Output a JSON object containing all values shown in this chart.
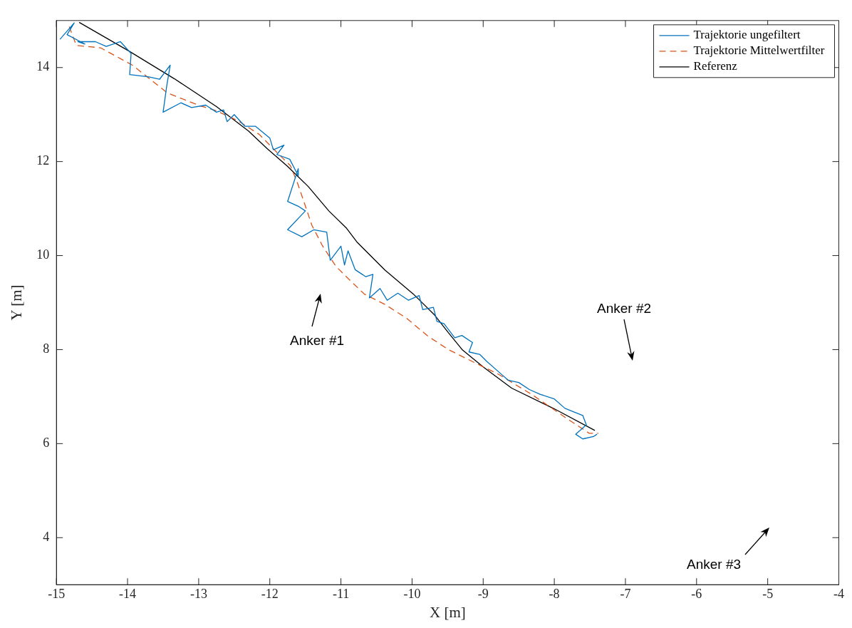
{
  "chart_data": {
    "type": "line",
    "xlabel": "X [m]",
    "ylabel": "Y [m]",
    "xlim": [
      -15,
      -4
    ],
    "ylim": [
      3,
      15
    ],
    "xticks": [
      -15,
      -14,
      -13,
      -12,
      -11,
      -10,
      -9,
      -8,
      -7,
      -6,
      -5,
      -4
    ],
    "yticks": [
      4,
      6,
      8,
      10,
      12,
      14
    ],
    "grid": false,
    "legend": "top right",
    "marker": "none",
    "series": [
      {
        "name": "Trajektorie ungefiltert",
        "color": "#0072bd",
        "line_style": "solid",
        "x": [
          -14.95,
          -14.75,
          -14.85,
          -14.6,
          -14.7,
          -14.45,
          -14.3,
          -14.1,
          -13.95,
          -13.97,
          -13.7,
          -13.55,
          -13.4,
          -13.45,
          -13.5,
          -13.25,
          -13.1,
          -12.9,
          -12.75,
          -12.65,
          -12.6,
          -12.5,
          -12.35,
          -12.2,
          -12.0,
          -11.95,
          -11.8,
          -11.9,
          -11.72,
          -11.6,
          -11.6,
          -11.75,
          -11.6,
          -11.5,
          -11.75,
          -11.55,
          -11.38,
          -11.2,
          -11.15,
          -11.0,
          -10.95,
          -10.9,
          -10.8,
          -10.65,
          -10.55,
          -10.6,
          -10.45,
          -10.35,
          -10.2,
          -10.05,
          -9.9,
          -9.85,
          -9.7,
          -9.65,
          -9.55,
          -9.4,
          -9.3,
          -9.15,
          -9.2,
          -9.05,
          -8.95,
          -8.8,
          -8.65,
          -8.5,
          -8.35,
          -8.2,
          -8.0,
          -7.85,
          -7.6,
          -7.55,
          -7.7,
          -7.6,
          -7.45,
          -7.4
        ],
        "values": [
          14.6,
          14.95,
          14.7,
          14.5,
          14.55,
          14.55,
          14.45,
          14.55,
          14.3,
          13.85,
          13.8,
          13.75,
          14.05,
          13.6,
          13.05,
          13.25,
          13.15,
          13.2,
          13.05,
          13.1,
          12.85,
          13.0,
          12.75,
          12.75,
          12.5,
          12.25,
          12.35,
          12.15,
          12.05,
          11.7,
          11.85,
          11.15,
          11.05,
          10.95,
          10.55,
          10.4,
          10.55,
          10.5,
          9.9,
          10.2,
          9.8,
          10.1,
          9.7,
          9.55,
          9.6,
          9.1,
          9.3,
          9.05,
          9.2,
          9.05,
          9.15,
          8.85,
          8.9,
          8.6,
          8.55,
          8.25,
          8.3,
          8.15,
          7.95,
          7.9,
          7.75,
          7.55,
          7.35,
          7.3,
          7.15,
          7.05,
          6.95,
          6.75,
          6.6,
          6.4,
          6.2,
          6.1,
          6.15,
          6.2
        ]
      },
      {
        "name": "Trajektorie Mittelwertfilter",
        "color": "#d95319",
        "line_style": "dashed",
        "x": [
          -14.82,
          -14.72,
          -14.38,
          -13.93,
          -13.44,
          -12.99,
          -12.75,
          -12.45,
          -12.15,
          -11.91,
          -11.71,
          -11.61,
          -11.51,
          -11.41,
          -11.26,
          -11.07,
          -10.87,
          -10.67,
          -10.38,
          -10.08,
          -9.78,
          -9.49,
          -9.09,
          -8.79,
          -8.3,
          -7.81,
          -7.51,
          -7.38
        ],
        "values": [
          14.87,
          14.47,
          14.42,
          14.05,
          13.46,
          13.19,
          13.08,
          12.87,
          12.58,
          12.21,
          11.91,
          11.54,
          11.1,
          10.65,
          10.21,
          9.77,
          9.47,
          9.18,
          8.96,
          8.67,
          8.29,
          8.0,
          7.7,
          7.48,
          7.03,
          6.52,
          6.22,
          6.22
        ]
      },
      {
        "name": "Referenz",
        "color": "#000000",
        "line_style": "solid",
        "x": [
          -14.68,
          -13.98,
          -13.34,
          -12.75,
          -12.3,
          -12.04,
          -11.76,
          -11.46,
          -11.17,
          -10.92,
          -10.77,
          -10.38,
          -9.98,
          -9.68,
          -9.49,
          -9.29,
          -8.99,
          -8.6,
          -8.0,
          -7.43
        ],
        "values": [
          14.96,
          14.35,
          13.76,
          13.17,
          12.65,
          12.28,
          11.91,
          11.47,
          10.95,
          10.58,
          10.28,
          9.69,
          9.18,
          8.73,
          8.36,
          7.99,
          7.62,
          7.18,
          6.74,
          6.28
        ]
      }
    ],
    "annotations": [
      "Anker #1",
      "Anker #2",
      "Anker #3"
    ]
  }
}
